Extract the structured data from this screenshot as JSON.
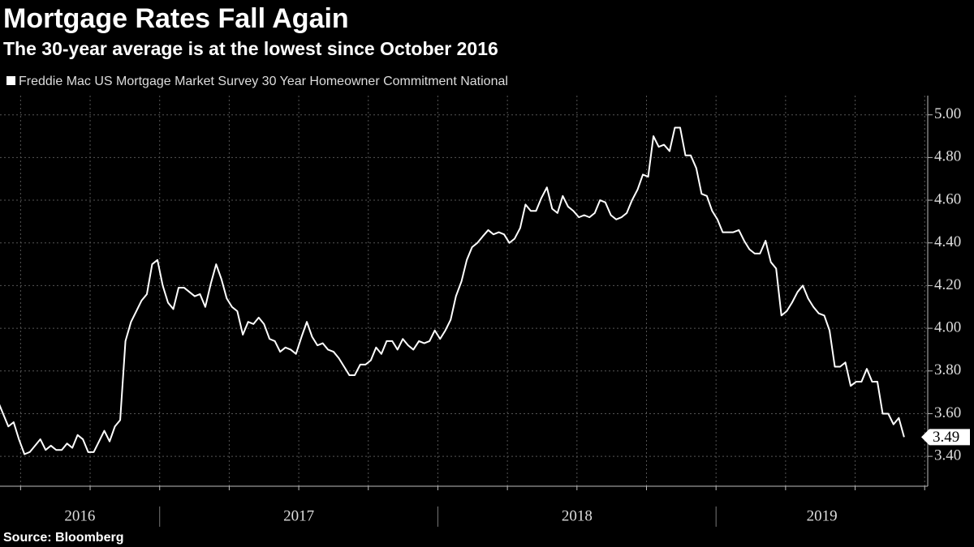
{
  "chart_data": {
    "type": "line",
    "title": "Mortgage Rates Fall Again",
    "subtitle": "The 30-year average is at the lowest since October 2016",
    "source": "Source: Bloomberg",
    "series": [
      {
        "name": "Freddie Mac US Mortgage Market Survey 30 Year Homeowner Commitment National",
        "color": "#ffffff",
        "x": [
          2016.418,
          2016.437,
          2016.456,
          2016.475,
          2016.494,
          2016.514,
          2016.533,
          2016.552,
          2016.571,
          2016.59,
          2016.609,
          2016.628,
          2016.648,
          2016.667,
          2016.686,
          2016.705,
          2016.724,
          2016.743,
          2016.763,
          2016.782,
          2016.801,
          2016.82,
          2016.839,
          2016.858,
          2016.877,
          2016.897,
          2016.916,
          2016.935,
          2016.954,
          2016.973,
          2016.992,
          2017.011,
          2017.03,
          2017.049,
          2017.068,
          2017.088,
          2017.107,
          2017.126,
          2017.145,
          2017.164,
          2017.184,
          2017.203,
          2017.222,
          2017.241,
          2017.26,
          2017.279,
          2017.299,
          2017.318,
          2017.337,
          2017.356,
          2017.375,
          2017.395,
          2017.414,
          2017.433,
          2017.452,
          2017.471,
          2017.49,
          2017.51,
          2017.529,
          2017.548,
          2017.567,
          2017.586,
          2017.605,
          2017.625,
          2017.644,
          2017.663,
          2017.682,
          2017.701,
          2017.721,
          2017.74,
          2017.759,
          2017.778,
          2017.797,
          2017.816,
          2017.836,
          2017.855,
          2017.874,
          2017.893,
          2017.912,
          2017.932,
          2017.951,
          2017.97,
          2017.989,
          2018.008,
          2018.027,
          2018.046,
          2018.065,
          2018.085,
          2018.104,
          2018.123,
          2018.142,
          2018.161,
          2018.181,
          2018.2,
          2018.219,
          2018.238,
          2018.257,
          2018.276,
          2018.296,
          2018.315,
          2018.334,
          2018.353,
          2018.372,
          2018.392,
          2018.411,
          2018.43,
          2018.449,
          2018.468,
          2018.487,
          2018.507,
          2018.526,
          2018.545,
          2018.564,
          2018.583,
          2018.602,
          2018.622,
          2018.641,
          2018.66,
          2018.679,
          2018.698,
          2018.718,
          2018.737,
          2018.756,
          2018.775,
          2018.794,
          2018.813,
          2018.833,
          2018.852,
          2018.871,
          2018.89,
          2018.909,
          2018.929,
          2018.948,
          2018.967,
          2018.986,
          2019.005,
          2019.024,
          2019.043,
          2019.062,
          2019.082,
          2019.101,
          2019.12,
          2019.139,
          2019.158,
          2019.178,
          2019.197,
          2019.216,
          2019.235,
          2019.254,
          2019.273,
          2019.293,
          2019.312,
          2019.331,
          2019.35,
          2019.369,
          2019.389,
          2019.408,
          2019.427,
          2019.446,
          2019.465,
          2019.484,
          2019.504,
          2019.523,
          2019.542,
          2019.561,
          2019.58,
          2019.599,
          2019.619,
          2019.638,
          2019.657,
          2019.676
        ],
        "values": [
          3.66,
          3.6,
          3.54,
          3.56,
          3.48,
          3.41,
          3.42,
          3.45,
          3.48,
          3.43,
          3.45,
          3.43,
          3.43,
          3.46,
          3.44,
          3.5,
          3.48,
          3.42,
          3.42,
          3.47,
          3.52,
          3.47,
          3.54,
          3.57,
          3.94,
          4.03,
          4.08,
          4.13,
          4.16,
          4.3,
          4.32,
          4.2,
          4.12,
          4.09,
          4.19,
          4.19,
          4.17,
          4.15,
          4.16,
          4.1,
          4.21,
          4.3,
          4.23,
          4.14,
          4.1,
          4.08,
          3.97,
          4.03,
          4.02,
          4.05,
          4.02,
          3.95,
          3.94,
          3.89,
          3.91,
          3.9,
          3.88,
          3.96,
          4.03,
          3.96,
          3.92,
          3.93,
          3.9,
          3.89,
          3.86,
          3.82,
          3.78,
          3.78,
          3.83,
          3.83,
          3.85,
          3.91,
          3.88,
          3.94,
          3.94,
          3.9,
          3.95,
          3.92,
          3.9,
          3.94,
          3.93,
          3.94,
          3.99,
          3.95,
          3.99,
          4.04,
          4.15,
          4.22,
          4.32,
          4.38,
          4.4,
          4.43,
          4.46,
          4.44,
          4.45,
          4.44,
          4.4,
          4.42,
          4.47,
          4.58,
          4.55,
          4.55,
          4.61,
          4.66,
          4.56,
          4.54,
          4.62,
          4.57,
          4.55,
          4.52,
          4.53,
          4.52,
          4.54,
          4.6,
          4.59,
          4.53,
          4.51,
          4.52,
          4.54,
          4.6,
          4.65,
          4.72,
          4.71,
          4.9,
          4.85,
          4.86,
          4.83,
          4.94,
          4.94,
          4.81,
          4.81,
          4.75,
          4.63,
          4.62,
          4.55,
          4.51,
          4.45,
          4.45,
          4.45,
          4.46,
          4.41,
          4.37,
          4.35,
          4.35,
          4.41,
          4.31,
          4.28,
          4.06,
          4.08,
          4.12,
          4.17,
          4.2,
          4.14,
          4.1,
          4.07,
          4.06,
          3.99,
          3.82,
          3.82,
          3.84,
          3.73,
          3.75,
          3.75,
          3.81,
          3.75,
          3.75,
          3.6,
          3.6,
          3.55,
          3.58,
          3.49
        ]
      }
    ],
    "xlim": [
      2016.426,
      2019.761
    ],
    "xticks": [
      2017,
      2018,
      2019
    ],
    "xgrid": [
      2016.5,
      2016.75,
      2017,
      2017.25,
      2017.5,
      2017.75,
      2018,
      2018.25,
      2018.5,
      2018.75,
      2019,
      2019.25,
      2019.5,
      2019.75
    ],
    "year_labels": [
      2016,
      2017,
      2018,
      2019
    ],
    "ylim": [
      3.26,
      5.09
    ],
    "yticks": [
      {
        "value": 3.4,
        "label": "3.40"
      },
      {
        "value": 3.6,
        "label": "3.60"
      },
      {
        "value": 3.8,
        "label": "3.80"
      },
      {
        "value": 4.0,
        "label": "4.00"
      },
      {
        "value": 4.2,
        "label": "4.20"
      },
      {
        "value": 4.4,
        "label": "4.40"
      },
      {
        "value": 4.6,
        "label": "4.60"
      },
      {
        "value": 4.8,
        "label": "4.80"
      },
      {
        "value": 5.0,
        "label": "5.00"
      }
    ],
    "grid": true,
    "highlight_last": true
  }
}
